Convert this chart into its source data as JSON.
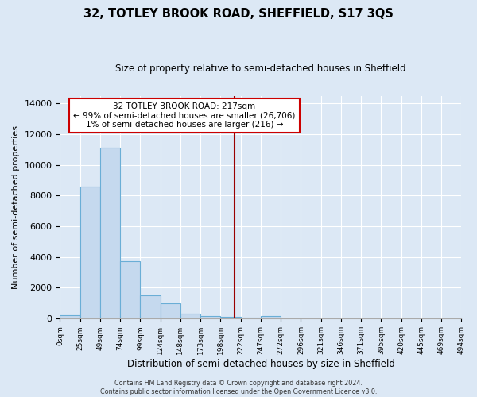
{
  "title": "32, TOTLEY BROOK ROAD, SHEFFIELD, S17 3QS",
  "subtitle": "Size of property relative to semi-detached houses in Sheffield",
  "xlabel": "Distribution of semi-detached houses by size in Sheffield",
  "ylabel": "Number of semi-detached properties",
  "bar_color": "#c5d9ee",
  "bar_edge_color": "#6aaed6",
  "background_color": "#dce8f5",
  "grid_color": "#ffffff",
  "red_line_x": 217,
  "annotation_text": "32 TOTLEY BROOK ROAD: 217sqm\n← 99% of semi-detached houses are smaller (26,706)\n1% of semi-detached houses are larger (216) →",
  "annotation_box_color": "#ffffff",
  "annotation_border_color": "#cc0000",
  "ylim": [
    0,
    14500
  ],
  "yticks": [
    0,
    2000,
    4000,
    6000,
    8000,
    10000,
    12000,
    14000
  ],
  "bin_edges": [
    0,
    25,
    50,
    75,
    100,
    125,
    150,
    175,
    200,
    225,
    250,
    275,
    300,
    325,
    350,
    375,
    400,
    425,
    450,
    475,
    500
  ],
  "bin_labels": [
    "0sqm",
    "25sqm",
    "49sqm",
    "74sqm",
    "99sqm",
    "124sqm",
    "148sqm",
    "173sqm",
    "198sqm",
    "222sqm",
    "247sqm",
    "272sqm",
    "296sqm",
    "321sqm",
    "346sqm",
    "371sqm",
    "395sqm",
    "420sqm",
    "445sqm",
    "469sqm",
    "494sqm"
  ],
  "counts": [
    200,
    8600,
    11100,
    3750,
    1500,
    1000,
    300,
    150,
    120,
    50,
    150,
    10,
    5,
    5,
    5,
    5,
    5,
    5,
    5,
    5
  ],
  "footnote": "Contains HM Land Registry data © Crown copyright and database right 2024.\nContains public sector information licensed under the Open Government Licence v3.0."
}
